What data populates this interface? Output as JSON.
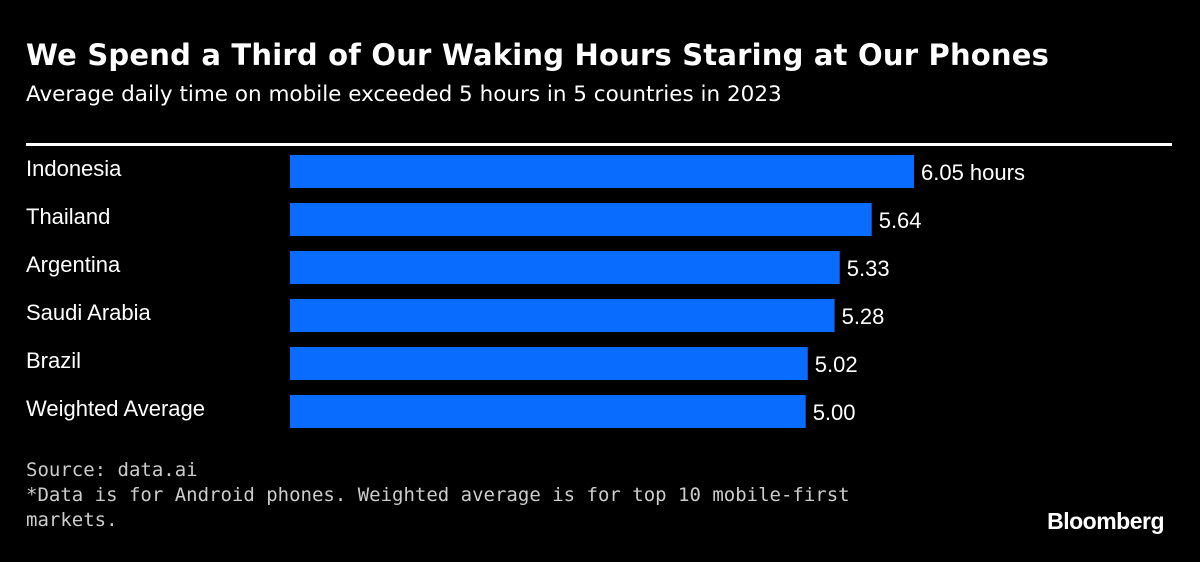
{
  "chart_data": {
    "type": "bar",
    "orientation": "horizontal",
    "title": "We Spend a Third of Our Waking Hours Staring at Our Phones",
    "subtitle": "Average daily time on mobile exceeded 5 hours in 5 countries in 2023",
    "categories": [
      "Indonesia",
      "Thailand",
      "Argentina",
      "Saudi Arabia",
      "Brazil",
      "Weighted Average"
    ],
    "values": [
      6.05,
      5.64,
      5.33,
      5.28,
      5.02,
      5.0
    ],
    "data_labels": [
      "6.05 hours",
      "5.64",
      "5.33",
      "5.28",
      "5.02",
      "5.00"
    ],
    "xlim": [
      0,
      6.05
    ],
    "unit": "hours",
    "grid": false,
    "bar_color": "#0a6cff",
    "background": "#000000"
  },
  "footer": {
    "source": "Source: data.ai",
    "note": "*Data is for Android phones. Weighted average is for top 10 mobile-first markets."
  },
  "logo": "Bloomberg"
}
